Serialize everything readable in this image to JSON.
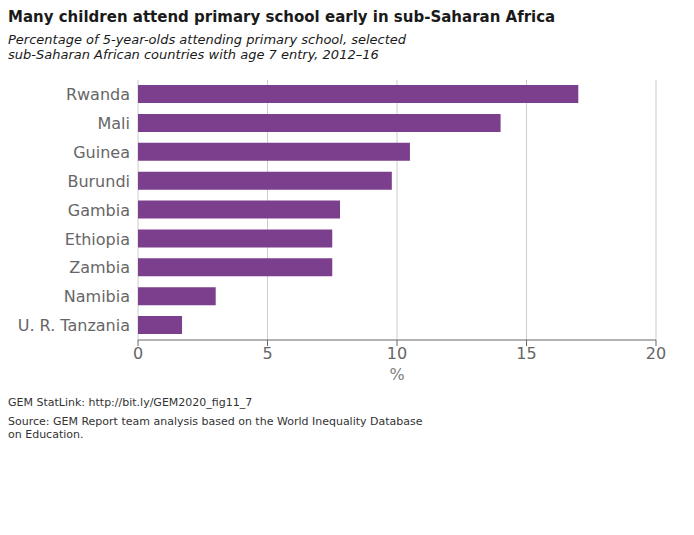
{
  "chart_data": {
    "type": "bar",
    "orientation": "horizontal",
    "title": "Many children attend primary school early in sub-Saharan Africa",
    "subtitle": "Percentage of 5-year-olds attending primary school, selected\nsub-Saharan African countries with age 7 entry, 2012–16",
    "categories": [
      "Rwanda",
      "Mali",
      "Guinea",
      "Burundi",
      "Gambia",
      "Ethiopia",
      "Zambia",
      "Namibia",
      "U. R. Tanzania"
    ],
    "values": [
      17.0,
      14.0,
      10.5,
      9.8,
      7.8,
      7.5,
      7.5,
      3.0,
      1.7
    ],
    "color": "#7B3F8E",
    "xlabel": "%",
    "xlim": [
      0,
      20
    ],
    "xticks": [
      0,
      5,
      10,
      15,
      20
    ],
    "grid": true,
    "annotations": [
      "GEM StatLink: http://bit.ly/GEM2020_fig11_7",
      "Source: GEM Report team analysis based on the World Inequality Database\non Education."
    ]
  }
}
